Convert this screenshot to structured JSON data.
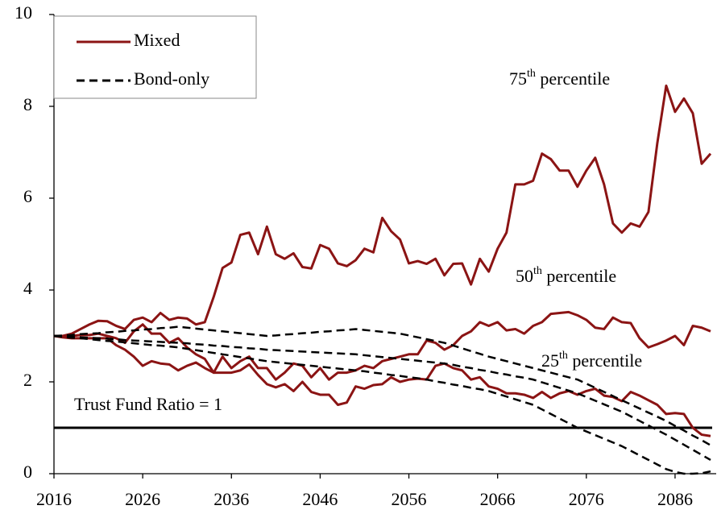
{
  "chart_data": {
    "type": "line",
    "x": [
      2016,
      2017,
      2018,
      2019,
      2020,
      2021,
      2022,
      2023,
      2024,
      2025,
      2026,
      2027,
      2028,
      2029,
      2030,
      2031,
      2032,
      2033,
      2034,
      2035,
      2036,
      2037,
      2038,
      2039,
      2040,
      2041,
      2042,
      2043,
      2044,
      2045,
      2046,
      2047,
      2048,
      2049,
      2050,
      2051,
      2052,
      2053,
      2054,
      2055,
      2056,
      2057,
      2058,
      2059,
      2060,
      2061,
      2062,
      2063,
      2064,
      2065,
      2066,
      2067,
      2068,
      2069,
      2070,
      2071,
      2072,
      2073,
      2074,
      2075,
      2076,
      2077,
      2078,
      2079,
      2080,
      2081,
      2082,
      2083,
      2084,
      2085,
      2086,
      2087,
      2088,
      2089,
      2090
    ],
    "xlim": [
      2016,
      2090
    ],
    "xticks": [
      2016,
      2026,
      2036,
      2046,
      2056,
      2066,
      2076,
      2086
    ],
    "ylim": [
      0,
      10
    ],
    "yticks": [
      0,
      2,
      4,
      6,
      8,
      10
    ],
    "groups": [
      {
        "name": "Mixed",
        "color": "#8b1414",
        "dashed": false,
        "series": [
          {
            "values": [
              3.0,
              3.0,
              3.05,
              3.15,
              3.25,
              3.33,
              3.32,
              3.22,
              3.15,
              3.35,
              3.4,
              3.3,
              3.5,
              3.35,
              3.4,
              3.38,
              3.25,
              3.3,
              3.85,
              4.48,
              4.6,
              5.2,
              5.25,
              4.78,
              5.38,
              4.78,
              4.68,
              4.8,
              4.5,
              4.47,
              4.98,
              4.9,
              4.58,
              4.52,
              4.65,
              4.9,
              4.82,
              5.57,
              5.28,
              5.1,
              4.58,
              4.63,
              4.57,
              4.68,
              4.32,
              4.57,
              4.58,
              4.12,
              4.68,
              4.4,
              4.9,
              5.25,
              6.3,
              6.3,
              6.38,
              6.97,
              6.85,
              6.6,
              6.6,
              6.25,
              6.6,
              6.88,
              6.3,
              5.45,
              5.25,
              5.45,
              5.38,
              5.7,
              7.2,
              8.45,
              7.88,
              8.17,
              7.85,
              6.75,
              6.97
            ]
          },
          {
            "values": [
              3.0,
              2.98,
              3.0,
              3.02,
              3.02,
              3.05,
              3.0,
              2.95,
              2.85,
              3.1,
              3.25,
              3.05,
              3.05,
              2.85,
              2.95,
              2.75,
              2.6,
              2.5,
              2.2,
              2.55,
              2.3,
              2.45,
              2.55,
              2.3,
              2.3,
              2.05,
              2.2,
              2.4,
              2.35,
              2.1,
              2.3,
              2.05,
              2.2,
              2.2,
              2.25,
              2.35,
              2.3,
              2.45,
              2.5,
              2.55,
              2.6,
              2.6,
              2.9,
              2.85,
              2.7,
              2.8,
              3.0,
              3.1,
              3.3,
              3.22,
              3.3,
              3.12,
              3.15,
              3.05,
              3.22,
              3.3,
              3.48,
              3.5,
              3.52,
              3.45,
              3.35,
              3.18,
              3.15,
              3.4,
              3.3,
              3.28,
              2.95,
              2.75,
              2.82,
              2.9,
              3.0,
              2.8,
              3.22,
              3.18,
              3.1
            ]
          },
          {
            "values": [
              3.0,
              2.97,
              2.95,
              2.95,
              2.95,
              2.95,
              2.95,
              2.8,
              2.7,
              2.55,
              2.35,
              2.45,
              2.4,
              2.38,
              2.25,
              2.35,
              2.42,
              2.3,
              2.2,
              2.2,
              2.2,
              2.25,
              2.38,
              2.15,
              1.95,
              1.88,
              1.95,
              1.8,
              2.0,
              1.78,
              1.72,
              1.72,
              1.5,
              1.55,
              1.9,
              1.85,
              1.93,
              1.95,
              2.1,
              2.0,
              2.05,
              2.07,
              2.05,
              2.35,
              2.4,
              2.3,
              2.25,
              2.05,
              2.1,
              1.9,
              1.85,
              1.75,
              1.75,
              1.72,
              1.65,
              1.78,
              1.65,
              1.75,
              1.8,
              1.72,
              1.8,
              1.85,
              1.7,
              1.67,
              1.58,
              1.78,
              1.7,
              1.6,
              1.5,
              1.3,
              1.32,
              1.3,
              1.0,
              0.85,
              0.82
            ]
          }
        ]
      },
      {
        "name": "Bond-only",
        "color": "#000000",
        "dashed": true,
        "series": [
          {
            "values": [
              3.0,
              3.01,
              3.02,
              3.04,
              3.05,
              3.06,
              3.08,
              3.09,
              3.11,
              3.12,
              3.14,
              3.15,
              3.17,
              3.18,
              3.2,
              3.18,
              3.16,
              3.14,
              3.12,
              3.1,
              3.08,
              3.06,
              3.04,
              3.02,
              3.0,
              3.01,
              3.03,
              3.04,
              3.06,
              3.07,
              3.09,
              3.1,
              3.12,
              3.13,
              3.15,
              3.13,
              3.11,
              3.09,
              3.07,
              3.05,
              3.01,
              2.97,
              2.93,
              2.89,
              2.85,
              2.79,
              2.73,
              2.67,
              2.61,
              2.55,
              2.5,
              2.45,
              2.4,
              2.35,
              2.3,
              2.25,
              2.2,
              2.15,
              2.1,
              2.05,
              1.96,
              1.87,
              1.78,
              1.69,
              1.6,
              1.51,
              1.42,
              1.33,
              1.24,
              1.15,
              1.04,
              0.94,
              0.83,
              0.73,
              0.62
            ]
          },
          {
            "values": [
              3.0,
              2.99,
              2.98,
              2.97,
              2.96,
              2.95,
              2.94,
              2.93,
              2.91,
              2.9,
              2.89,
              2.88,
              2.87,
              2.86,
              2.85,
              2.84,
              2.82,
              2.81,
              2.79,
              2.78,
              2.76,
              2.75,
              2.73,
              2.72,
              2.7,
              2.69,
              2.68,
              2.67,
              2.66,
              2.65,
              2.64,
              2.63,
              2.62,
              2.61,
              2.6,
              2.58,
              2.56,
              2.54,
              2.52,
              2.5,
              2.48,
              2.46,
              2.44,
              2.42,
              2.4,
              2.37,
              2.33,
              2.3,
              2.26,
              2.23,
              2.19,
              2.16,
              2.12,
              2.09,
              2.05,
              1.99,
              1.93,
              1.87,
              1.81,
              1.75,
              1.67,
              1.59,
              1.51,
              1.43,
              1.35,
              1.25,
              1.15,
              1.05,
              0.95,
              0.85,
              0.74,
              0.63,
              0.52,
              0.41,
              0.3
            ]
          },
          {
            "values": [
              3.0,
              2.98,
              2.96,
              2.95,
              2.93,
              2.91,
              2.89,
              2.88,
              2.86,
              2.84,
              2.82,
              2.8,
              2.79,
              2.77,
              2.75,
              2.72,
              2.69,
              2.66,
              2.63,
              2.6,
              2.57,
              2.54,
              2.51,
              2.48,
              2.45,
              2.43,
              2.41,
              2.39,
              2.37,
              2.35,
              2.33,
              2.31,
              2.29,
              2.27,
              2.25,
              2.23,
              2.2,
              2.18,
              2.15,
              2.13,
              2.1,
              2.08,
              2.05,
              2.01,
              1.98,
              1.94,
              1.91,
              1.87,
              1.84,
              1.8,
              1.74,
              1.68,
              1.62,
              1.56,
              1.5,
              1.4,
              1.3,
              1.2,
              1.1,
              1.0,
              0.92,
              0.84,
              0.76,
              0.68,
              0.6,
              0.5,
              0.4,
              0.3,
              0.2,
              0.1,
              0.04,
              0.0,
              0.0,
              0.01,
              0.05
            ]
          }
        ]
      }
    ],
    "reference_line": {
      "value": 1,
      "label": "Trust Fund Ratio = 1"
    },
    "annotations": [
      "75th percentile",
      "50th percentile",
      "25th percentile"
    ]
  }
}
